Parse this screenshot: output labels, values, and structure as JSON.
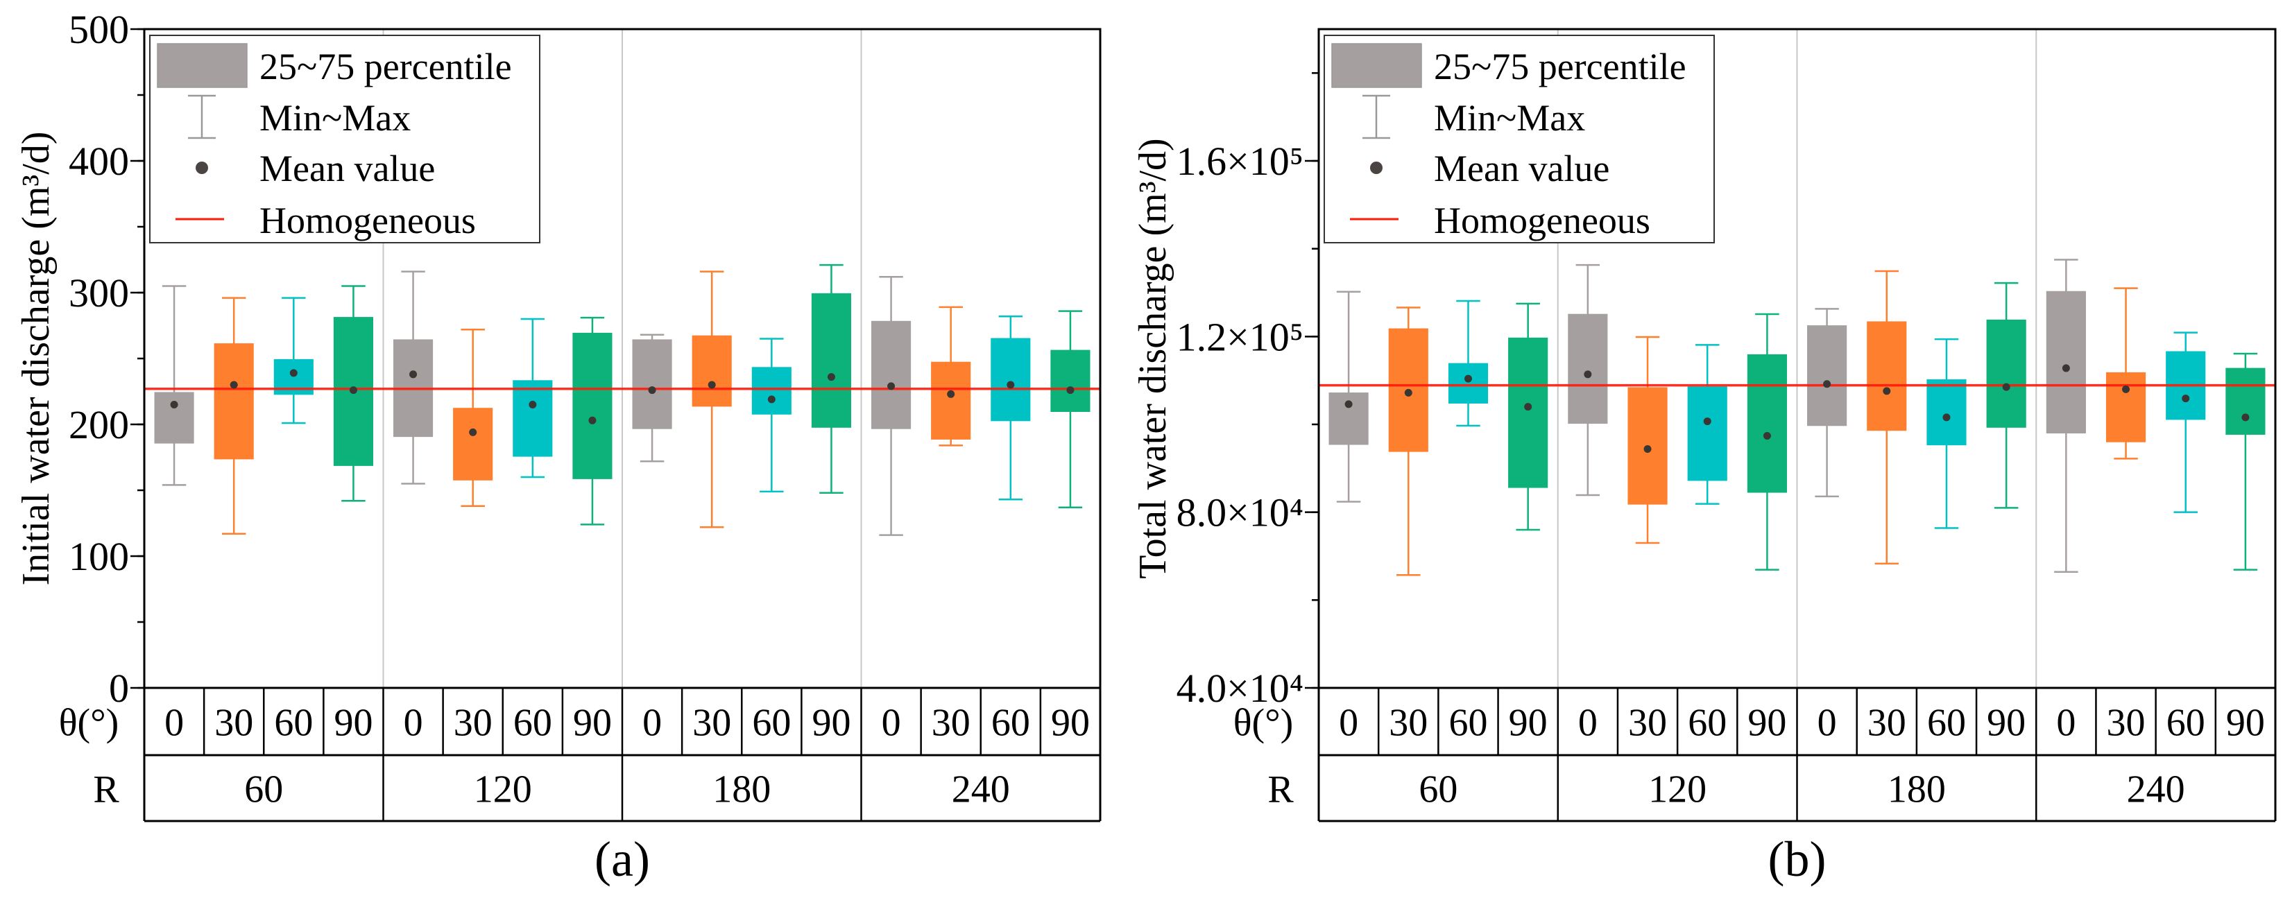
{
  "legend": {
    "box": "25~75 percentile",
    "whisker": "Min~Max",
    "mean": "Mean value",
    "line": "Homogeneous"
  },
  "colors": {
    "theta_0": "#a5a09f",
    "theta_30": "#fe7f2d",
    "theta_60": "#00c2c5",
    "theta_90": "#0db27a",
    "homogeneous": "#ff1a0a",
    "mean_dot": "#3a3633"
  },
  "chart_data": [
    {
      "type": "box",
      "title": "(a)",
      "ylabel": "Initial water discharge (m³/d)",
      "ylim": [
        0,
        500
      ],
      "yticks": [
        0,
        100,
        200,
        300,
        400,
        500
      ],
      "ytick_labels": [
        "0",
        "100",
        "200",
        "300",
        "400",
        "500"
      ],
      "minor_step": 50,
      "row_labels": {
        "theta": "θ(°)",
        "R": "R"
      },
      "R_values": [
        "60",
        "120",
        "180",
        "240"
      ],
      "theta_values": [
        "0",
        "30",
        "60",
        "90"
      ],
      "homogeneous": 227,
      "boxes": [
        {
          "R": "60",
          "theta": "0",
          "min": 154,
          "q1": 186,
          "mean": 215,
          "q3": 224,
          "max": 305
        },
        {
          "R": "60",
          "theta": "30",
          "min": 117,
          "q1": 174,
          "mean": 230,
          "q3": 261,
          "max": 296
        },
        {
          "R": "60",
          "theta": "60",
          "min": 201,
          "q1": 223,
          "mean": 239,
          "q3": 249,
          "max": 296
        },
        {
          "R": "60",
          "theta": "90",
          "min": 142,
          "q1": 169,
          "mean": 226,
          "q3": 281,
          "max": 305
        },
        {
          "R": "120",
          "theta": "0",
          "min": 155,
          "q1": 191,
          "mean": 238,
          "q3": 264,
          "max": 316
        },
        {
          "R": "120",
          "theta": "30",
          "min": 138,
          "q1": 158,
          "mean": 194,
          "q3": 212,
          "max": 272
        },
        {
          "R": "120",
          "theta": "60",
          "min": 160,
          "q1": 176,
          "mean": 215,
          "q3": 233,
          "max": 280
        },
        {
          "R": "120",
          "theta": "90",
          "min": 124,
          "q1": 159,
          "mean": 203,
          "q3": 269,
          "max": 281
        },
        {
          "R": "180",
          "theta": "0",
          "min": 172,
          "q1": 197,
          "mean": 226,
          "q3": 264,
          "max": 268
        },
        {
          "R": "180",
          "theta": "30",
          "min": 122,
          "q1": 214,
          "mean": 230,
          "q3": 267,
          "max": 316
        },
        {
          "R": "180",
          "theta": "60",
          "min": 149,
          "q1": 208,
          "mean": 219,
          "q3": 243,
          "max": 265
        },
        {
          "R": "180",
          "theta": "90",
          "min": 148,
          "q1": 198,
          "mean": 236,
          "q3": 299,
          "max": 321
        },
        {
          "R": "240",
          "theta": "0",
          "min": 116,
          "q1": 197,
          "mean": 229,
          "q3": 278,
          "max": 312
        },
        {
          "R": "240",
          "theta": "30",
          "min": 184,
          "q1": 189,
          "mean": 223,
          "q3": 247,
          "max": 289
        },
        {
          "R": "240",
          "theta": "60",
          "min": 143,
          "q1": 203,
          "mean": 230,
          "q3": 265,
          "max": 282
        },
        {
          "R": "240",
          "theta": "90",
          "min": 137,
          "q1": 210,
          "mean": 226,
          "q3": 256,
          "max": 286
        }
      ]
    },
    {
      "type": "box",
      "title": "(b)",
      "ylabel": "Total water discharge (m³/d)",
      "ylim": [
        40000,
        190000
      ],
      "yticks": [
        40000,
        80000,
        120000,
        160000
      ],
      "ytick_labels": [
        "4.0×10⁴",
        "8.0×10⁴",
        "1.2×10⁵",
        "1.6×10⁵"
      ],
      "minor_step": 20000,
      "row_labels": {
        "theta": "θ(°)",
        "R": "R"
      },
      "R_values": [
        "60",
        "120",
        "180",
        "240"
      ],
      "theta_values": [
        "0",
        "30",
        "60",
        "90"
      ],
      "homogeneous": 108900,
      "boxes": [
        {
          "R": "60",
          "theta": "0",
          "min": 82400,
          "q1": 95500,
          "mean": 104600,
          "q3": 107100,
          "max": 130200
        },
        {
          "R": "60",
          "theta": "30",
          "min": 65700,
          "q1": 93900,
          "mean": 107200,
          "q3": 121700,
          "max": 126600
        },
        {
          "R": "60",
          "theta": "60",
          "min": 99700,
          "q1": 104900,
          "mean": 110400,
          "q3": 113800,
          "max": 128100
        },
        {
          "R": "60",
          "theta": "90",
          "min": 76000,
          "q1": 85700,
          "mean": 104000,
          "q3": 119600,
          "max": 127500
        },
        {
          "R": "120",
          "theta": "0",
          "min": 83900,
          "q1": 100300,
          "mean": 111400,
          "q3": 125000,
          "max": 136300
        },
        {
          "R": "120",
          "theta": "30",
          "min": 73000,
          "q1": 81900,
          "mean": 94400,
          "q3": 108300,
          "max": 119900
        },
        {
          "R": "120",
          "theta": "60",
          "min": 81900,
          "q1": 87300,
          "mean": 100700,
          "q3": 108500,
          "max": 118100
        },
        {
          "R": "120",
          "theta": "90",
          "min": 66900,
          "q1": 84600,
          "mean": 97400,
          "q3": 115800,
          "max": 125100
        },
        {
          "R": "180",
          "theta": "0",
          "min": 83600,
          "q1": 99800,
          "mean": 109200,
          "q3": 122400,
          "max": 126300
        },
        {
          "R": "180",
          "theta": "30",
          "min": 68300,
          "q1": 98700,
          "mean": 107600,
          "q3": 123300,
          "max": 134900
        },
        {
          "R": "180",
          "theta": "60",
          "min": 76400,
          "q1": 95400,
          "mean": 101600,
          "q3": 110100,
          "max": 119400
        },
        {
          "R": "180",
          "theta": "90",
          "min": 81000,
          "q1": 99400,
          "mean": 108500,
          "q3": 123700,
          "max": 132200
        },
        {
          "R": "240",
          "theta": "0",
          "min": 66400,
          "q1": 98100,
          "mean": 112800,
          "q3": 130200,
          "max": 137500
        },
        {
          "R": "240",
          "theta": "30",
          "min": 92200,
          "q1": 96100,
          "mean": 108000,
          "q3": 111700,
          "max": 131000
        },
        {
          "R": "240",
          "theta": "60",
          "min": 80000,
          "q1": 101200,
          "mean": 105900,
          "q3": 116500,
          "max": 120900
        },
        {
          "R": "240",
          "theta": "90",
          "min": 66900,
          "q1": 97800,
          "mean": 101600,
          "q3": 112700,
          "max": 116100
        }
      ]
    }
  ]
}
